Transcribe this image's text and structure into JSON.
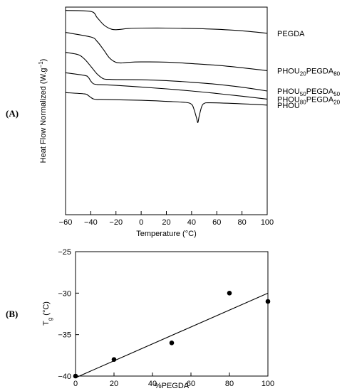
{
  "chart_data": [
    {
      "panel": "(A)",
      "type": "line",
      "xlabel": "Temperature (°C)",
      "ylabel": "Heat Flow Normalized (W.g",
      "ylabel_sup": "−1",
      "ylabel_close": ")",
      "xlim": [
        -60,
        100
      ],
      "xticks": [
        -60,
        -40,
        -20,
        0,
        20,
        40,
        60,
        80,
        100
      ],
      "series": [
        {
          "name": "PEGDA",
          "label_parts": [
            {
              "text": "PEGDA",
              "sub": false
            }
          ],
          "x": [
            -60,
            -40,
            -35,
            -30,
            -25,
            -20,
            -10,
            0,
            20,
            40,
            60,
            80,
            100
          ],
          "y": [
            98.4,
            97.9,
            95.0,
            91.6,
            89.7,
            89.1,
            89.7,
            89.9,
            89.9,
            89.7,
            89.3,
            88.6,
            87.4
          ]
        },
        {
          "name": "PHOU20PEGDA80",
          "label_parts": [
            {
              "text": "PHOU",
              "sub": false
            },
            {
              "text": "20",
              "sub": true
            },
            {
              "text": "PEGDA",
              "sub": false
            },
            {
              "text": "80",
              "sub": true
            }
          ],
          "x": [
            -60,
            -40,
            -35,
            -30,
            -25,
            -20,
            -15,
            -10,
            0,
            20,
            40,
            60,
            80,
            100
          ],
          "y": [
            87.8,
            85.6,
            83.5,
            79.6,
            75.4,
            73.4,
            73.1,
            73.4,
            73.6,
            73.5,
            72.8,
            72.0,
            70.8,
            69.4
          ]
        },
        {
          "name": "PHOU50PEGDA50",
          "label_parts": [
            {
              "text": "PHOU",
              "sub": false
            },
            {
              "text": "50",
              "sub": true
            },
            {
              "text": "PEGDA",
              "sub": false
            },
            {
              "text": "50",
              "sub": true
            }
          ],
          "x": [
            -60,
            -50,
            -45,
            -40,
            -35,
            -30,
            -25,
            -20,
            0,
            20,
            40,
            60,
            80,
            100
          ],
          "y": [
            78.2,
            77.1,
            75.0,
            71.5,
            67.8,
            65.5,
            65.2,
            65.1,
            65.0,
            64.6,
            63.8,
            62.8,
            61.4,
            59.6
          ]
        },
        {
          "name": "PHOU80PEGDA20",
          "label_parts": [
            {
              "text": "PHOU",
              "sub": false
            },
            {
              "text": "80",
              "sub": true
            },
            {
              "text": "PEGDA",
              "sub": false
            },
            {
              "text": "20",
              "sub": true
            }
          ],
          "x": [
            -60,
            -45,
            -42,
            -40,
            -38,
            -35,
            -30,
            -20,
            0,
            20,
            40,
            60,
            80,
            100
          ],
          "y": [
            68.4,
            67.1,
            66.2,
            64.4,
            63.1,
            62.7,
            62.6,
            62.3,
            61.5,
            60.6,
            59.6,
            58.4,
            57.1,
            55.7
          ]
        },
        {
          "name": "PHOU",
          "label_parts": [
            {
              "text": "PHOU",
              "sub": false
            }
          ],
          "x": [
            -60,
            -45,
            -42,
            -40,
            -38,
            -35,
            -30,
            0,
            20,
            35,
            40,
            42,
            44,
            45,
            46,
            48,
            50,
            55,
            80,
            100
          ],
          "y": [
            58.8,
            58.2,
            57.4,
            56.5,
            55.8,
            55.5,
            55.5,
            55.1,
            54.6,
            54.1,
            53.2,
            50.6,
            46.4,
            44.4,
            47.4,
            52.0,
            53.6,
            53.9,
            53.4,
            52.8
          ]
        }
      ]
    },
    {
      "panel": "(B)",
      "type": "scatter",
      "xlabel": "%PEGDA",
      "ylabel_main": "T",
      "ylabel_sub": "g",
      "ylabel_unit": " (°C)",
      "xlim": [
        0,
        100
      ],
      "ylim": [
        -40,
        -25
      ],
      "xticks": [
        0,
        20,
        40,
        60,
        80,
        100
      ],
      "yticks": [
        -40,
        -35,
        -30,
        -25
      ],
      "points": {
        "x": [
          0,
          20,
          50,
          80,
          100
        ],
        "y": [
          -40,
          -38,
          -36,
          -30,
          -31
        ]
      },
      "fit_line": {
        "x": [
          0,
          100
        ],
        "y": [
          -40.2,
          -30.0
        ]
      }
    }
  ]
}
